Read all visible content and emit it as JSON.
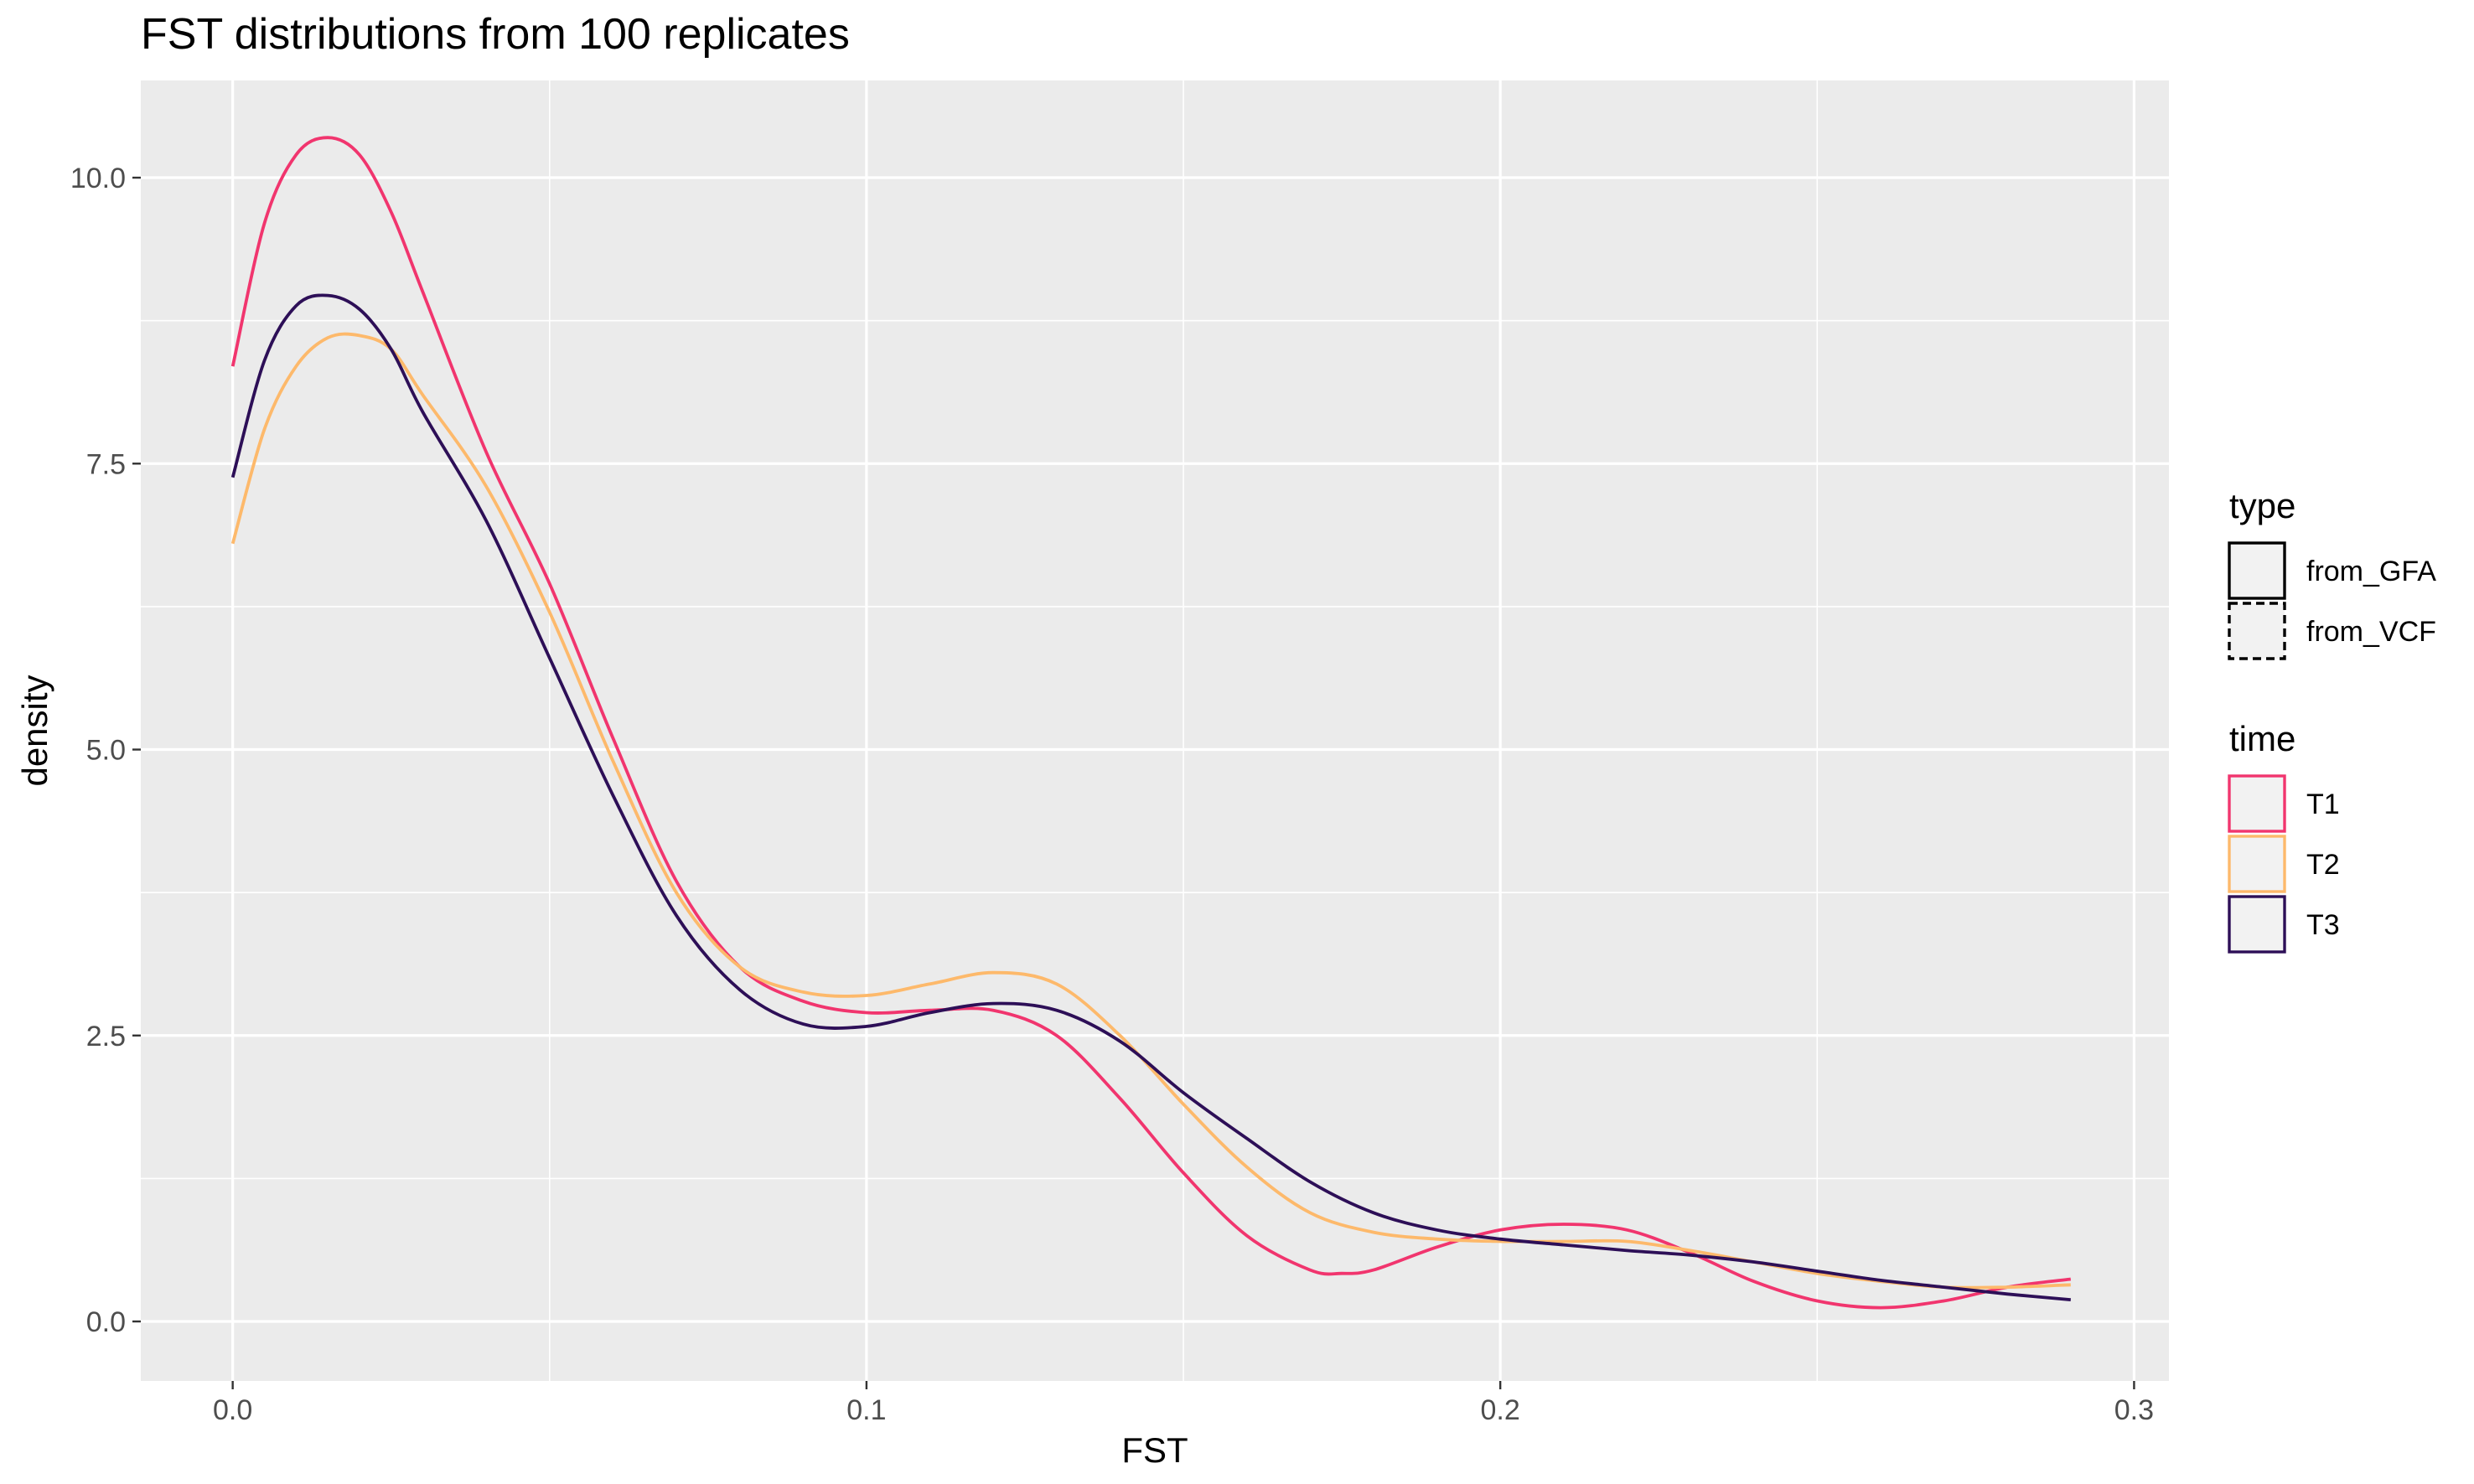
{
  "chart_data": {
    "type": "line",
    "title": "FST distributions from 100 replicates",
    "xlabel": "FST",
    "ylabel": "density",
    "xlim": [
      -0.0145,
      0.3055
    ],
    "ylim": [
      -0.52,
      10.85
    ],
    "x_ticks": [
      0.0,
      0.1,
      0.2,
      0.3
    ],
    "x_tick_labels": [
      "0.0",
      "0.1",
      "0.2",
      "0.3"
    ],
    "y_ticks": [
      0.0,
      2.5,
      5.0,
      7.5,
      10.0
    ],
    "y_tick_labels": [
      "0.0",
      "2.5",
      "5.0",
      "7.5",
      "10.0"
    ],
    "grid": true,
    "legend_placement": "right",
    "legends": [
      {
        "title": "type",
        "entries": [
          {
            "label": "from_GFA",
            "linetype": "solid"
          },
          {
            "label": "from_VCF",
            "linetype": "dashed"
          }
        ]
      },
      {
        "title": "time",
        "entries": [
          {
            "label": "T1",
            "color": "#f1356e"
          },
          {
            "label": "T2",
            "color": "#fdb96b"
          },
          {
            "label": "T3",
            "color": "#2d0f57"
          }
        ]
      }
    ],
    "series": [
      {
        "name": "T1",
        "color": "#f1356e",
        "linetype": "solid",
        "x": [
          0.0,
          0.005,
          0.01,
          0.015,
          0.02,
          0.025,
          0.03,
          0.04,
          0.05,
          0.06,
          0.07,
          0.08,
          0.09,
          0.1,
          0.11,
          0.12,
          0.13,
          0.14,
          0.15,
          0.16,
          0.17,
          0.175,
          0.18,
          0.19,
          0.2,
          0.21,
          0.22,
          0.23,
          0.24,
          0.25,
          0.26,
          0.27,
          0.28,
          0.29
        ],
        "y": [
          8.35,
          9.6,
          10.2,
          10.35,
          10.2,
          9.7,
          9.0,
          7.6,
          6.45,
          5.1,
          3.85,
          3.1,
          2.8,
          2.7,
          2.72,
          2.72,
          2.5,
          1.95,
          1.3,
          0.75,
          0.45,
          0.42,
          0.45,
          0.65,
          0.8,
          0.85,
          0.8,
          0.6,
          0.35,
          0.18,
          0.12,
          0.18,
          0.3,
          0.37
        ]
      },
      {
        "name": "T2",
        "color": "#fdb96b",
        "linetype": "solid",
        "x": [
          0.0,
          0.005,
          0.01,
          0.015,
          0.02,
          0.025,
          0.03,
          0.04,
          0.05,
          0.06,
          0.07,
          0.08,
          0.09,
          0.1,
          0.11,
          0.12,
          0.13,
          0.14,
          0.15,
          0.16,
          0.17,
          0.18,
          0.19,
          0.2,
          0.21,
          0.22,
          0.23,
          0.24,
          0.25,
          0.26,
          0.27,
          0.28,
          0.29
        ],
        "y": [
          6.8,
          7.8,
          8.35,
          8.6,
          8.62,
          8.5,
          8.1,
          7.3,
          6.2,
          4.9,
          3.75,
          3.1,
          2.88,
          2.85,
          2.95,
          3.05,
          2.95,
          2.5,
          1.9,
          1.35,
          0.95,
          0.78,
          0.72,
          0.7,
          0.7,
          0.7,
          0.62,
          0.52,
          0.42,
          0.35,
          0.3,
          0.3,
          0.32
        ]
      },
      {
        "name": "T3",
        "color": "#2d0f57",
        "linetype": "solid",
        "x": [
          0.0,
          0.005,
          0.01,
          0.015,
          0.02,
          0.025,
          0.03,
          0.04,
          0.05,
          0.06,
          0.07,
          0.08,
          0.09,
          0.1,
          0.11,
          0.12,
          0.13,
          0.14,
          0.15,
          0.16,
          0.17,
          0.18,
          0.19,
          0.2,
          0.21,
          0.22,
          0.23,
          0.24,
          0.25,
          0.26,
          0.27,
          0.28,
          0.29
        ],
        "y": [
          7.38,
          8.4,
          8.88,
          8.97,
          8.85,
          8.5,
          7.95,
          7.0,
          5.8,
          4.6,
          3.55,
          2.9,
          2.6,
          2.58,
          2.7,
          2.78,
          2.72,
          2.45,
          2.0,
          1.6,
          1.22,
          0.95,
          0.8,
          0.72,
          0.67,
          0.62,
          0.58,
          0.52,
          0.44,
          0.36,
          0.3,
          0.24,
          0.19
        ]
      }
    ]
  }
}
